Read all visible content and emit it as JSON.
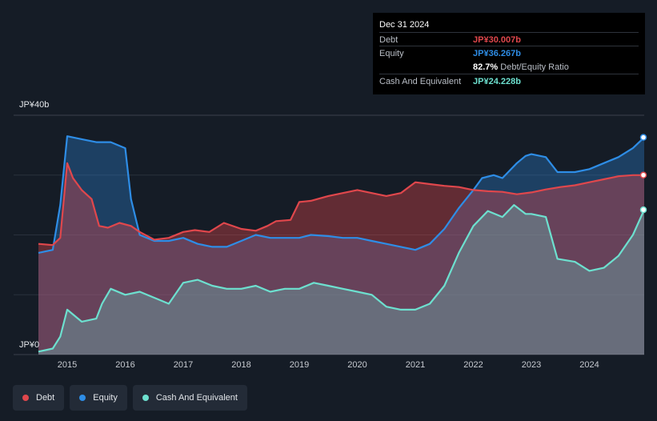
{
  "tooltip": {
    "date": "Dec 31 2024",
    "debt_label": "Debt",
    "debt_value": "JP¥30.007b",
    "equity_label": "Equity",
    "equity_value": "JP¥36.267b",
    "ratio_value": "82.7%",
    "ratio_label": "Debt/Equity Ratio",
    "cash_label": "Cash And Equivalent",
    "cash_value": "JP¥24.228b"
  },
  "axis": {
    "y_top_label": "JP¥40b",
    "y_bottom_label": "JP¥0"
  },
  "legend": [
    {
      "label": "Debt",
      "color": "#e0474c"
    },
    {
      "label": "Equity",
      "color": "#2e8de6"
    },
    {
      "label": "Cash And Equivalent",
      "color": "#6de0cf"
    }
  ],
  "chart_data": {
    "type": "area",
    "ylim": [
      0,
      40
    ],
    "y_unit": "JP¥ billions",
    "xlim": [
      2014.5,
      2025.0
    ],
    "x_ticks": [
      "2015",
      "2016",
      "2017",
      "2018",
      "2019",
      "2020",
      "2021",
      "2022",
      "2023",
      "2024"
    ],
    "grid": true,
    "legend_position": "bottom-left",
    "series": [
      {
        "name": "Debt",
        "color": "#e0474c",
        "x": [
          2014.5,
          2014.75,
          2014.88,
          2015.0,
          2015.1,
          2015.25,
          2015.42,
          2015.55,
          2015.7,
          2015.9,
          2016.1,
          2016.25,
          2016.5,
          2016.75,
          2017.0,
          2017.2,
          2017.45,
          2017.7,
          2018.0,
          2018.25,
          2018.45,
          2018.6,
          2018.85,
          2019.0,
          2019.2,
          2019.5,
          2019.75,
          2020.0,
          2020.25,
          2020.5,
          2020.75,
          2021.0,
          2021.25,
          2021.5,
          2021.75,
          2022.0,
          2022.25,
          2022.5,
          2022.75,
          2023.0,
          2023.25,
          2023.5,
          2023.75,
          2024.0,
          2024.25,
          2024.5,
          2024.75,
          2025.0
        ],
        "values": [
          18.5,
          18.3,
          19.5,
          32.0,
          29.5,
          27.5,
          26.0,
          21.5,
          21.2,
          22.0,
          21.5,
          20.5,
          19.2,
          19.5,
          20.5,
          20.8,
          20.5,
          22.0,
          21.0,
          20.7,
          21.5,
          22.3,
          22.5,
          25.5,
          25.7,
          26.5,
          27.0,
          27.5,
          27.0,
          26.5,
          27.0,
          28.8,
          28.5,
          28.2,
          28.0,
          27.5,
          27.3,
          27.2,
          26.8,
          27.1,
          27.6,
          28.0,
          28.3,
          28.8,
          29.3,
          29.8,
          30.0,
          30.0
        ]
      },
      {
        "name": "Equity",
        "color": "#2e8de6",
        "x": [
          2014.5,
          2014.75,
          2014.88,
          2015.0,
          2015.25,
          2015.5,
          2015.75,
          2016.0,
          2016.1,
          2016.25,
          2016.5,
          2016.75,
          2017.0,
          2017.25,
          2017.5,
          2017.75,
          2018.0,
          2018.25,
          2018.5,
          2018.75,
          2019.0,
          2019.2,
          2019.5,
          2019.75,
          2020.0,
          2020.25,
          2020.5,
          2020.75,
          2021.0,
          2021.25,
          2021.5,
          2021.75,
          2022.0,
          2022.15,
          2022.35,
          2022.5,
          2022.75,
          2022.9,
          2023.0,
          2023.25,
          2023.45,
          2023.75,
          2024.0,
          2024.25,
          2024.5,
          2024.75,
          2025.0
        ],
        "values": [
          17.0,
          17.5,
          25.0,
          36.5,
          36.0,
          35.5,
          35.5,
          34.5,
          26.0,
          20.0,
          19.0,
          19.0,
          19.5,
          18.5,
          18.0,
          18.0,
          19.0,
          20.0,
          19.5,
          19.5,
          19.5,
          20.0,
          19.8,
          19.5,
          19.5,
          19.0,
          18.5,
          18.0,
          17.5,
          18.5,
          21.0,
          24.5,
          27.5,
          29.5,
          30.0,
          29.5,
          32.0,
          33.2,
          33.5,
          33.0,
          30.5,
          30.5,
          31.0,
          32.0,
          33.0,
          34.5,
          36.3
        ]
      },
      {
        "name": "Cash And Equivalent",
        "color": "#6de0cf",
        "x": [
          2014.5,
          2014.75,
          2014.88,
          2015.0,
          2015.25,
          2015.5,
          2015.6,
          2015.75,
          2016.0,
          2016.25,
          2016.5,
          2016.75,
          2017.0,
          2017.25,
          2017.5,
          2017.75,
          2018.0,
          2018.25,
          2018.5,
          2018.75,
          2019.0,
          2019.25,
          2019.5,
          2019.75,
          2020.0,
          2020.25,
          2020.5,
          2020.75,
          2021.0,
          2021.25,
          2021.5,
          2021.75,
          2022.0,
          2022.25,
          2022.5,
          2022.7,
          2022.9,
          2023.0,
          2023.25,
          2023.45,
          2023.75,
          2024.0,
          2024.25,
          2024.5,
          2024.75,
          2025.0
        ],
        "values": [
          0.5,
          1.0,
          3.0,
          7.5,
          5.5,
          6.0,
          8.5,
          11.0,
          10.0,
          10.5,
          9.5,
          8.5,
          12.0,
          12.5,
          11.5,
          11.0,
          11.0,
          11.5,
          10.5,
          11.0,
          11.0,
          12.0,
          11.5,
          11.0,
          10.5,
          10.0,
          8.0,
          7.5,
          7.5,
          8.5,
          11.5,
          17.0,
          21.5,
          24.0,
          23.0,
          25.0,
          23.5,
          23.5,
          23.0,
          16.0,
          15.5,
          14.0,
          14.5,
          16.5,
          20.0,
          24.2
        ]
      }
    ]
  }
}
